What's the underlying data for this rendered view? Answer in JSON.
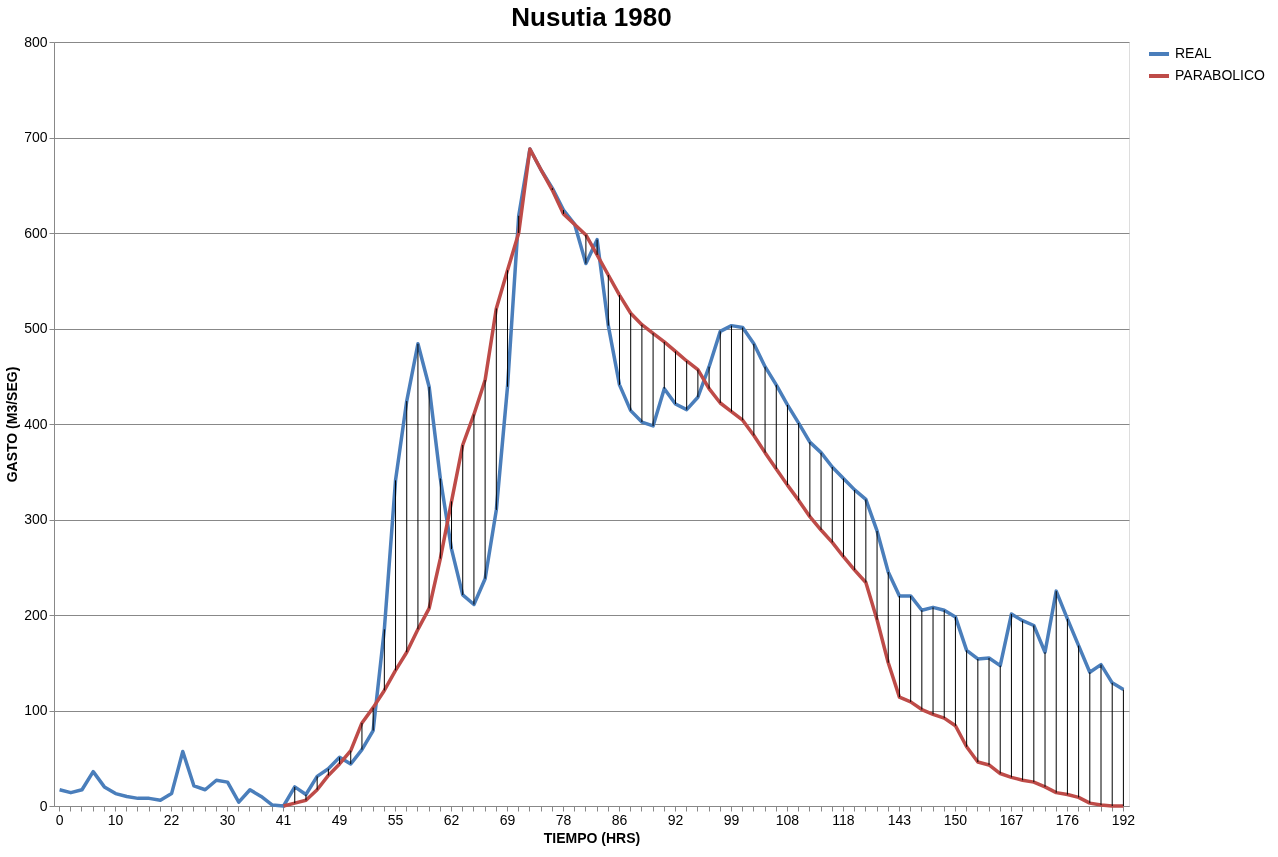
{
  "chart_data": {
    "type": "line",
    "title": "Nusutia 1980",
    "xlabel": "TIEMPO (HRS)",
    "ylabel": "GASTO (M3/SEG)",
    "categories": [
      "0",
      null,
      null,
      null,
      null,
      "10",
      null,
      null,
      null,
      null,
      "22",
      null,
      null,
      null,
      null,
      "30",
      null,
      null,
      null,
      null,
      "41",
      null,
      null,
      null,
      null,
      "49",
      null,
      null,
      null,
      null,
      "55",
      null,
      null,
      null,
      null,
      "62",
      null,
      null,
      null,
      null,
      "69",
      null,
      null,
      null,
      null,
      "78",
      null,
      null,
      null,
      null,
      "86",
      null,
      null,
      null,
      null,
      "92",
      null,
      null,
      null,
      null,
      "99",
      null,
      null,
      null,
      null,
      "108",
      null,
      null,
      null,
      null,
      "118",
      null,
      null,
      null,
      null,
      "143",
      null,
      null,
      null,
      null,
      "150",
      null,
      null,
      null,
      null,
      "167",
      null,
      null,
      null,
      null,
      "176",
      null,
      null,
      null,
      null,
      "192"
    ],
    "series": [
      {
        "name": "REAL",
        "color": "#4a7ebb",
        "values": [
          17,
          14,
          17,
          36,
          20,
          13,
          10,
          8,
          8,
          6,
          13,
          57,
          21,
          17,
          27,
          25,
          4,
          17,
          10,
          1,
          0,
          20,
          12,
          31,
          39,
          51,
          44,
          59,
          79,
          185,
          341,
          424,
          484,
          439,
          343,
          269,
          221,
          211,
          238,
          310,
          439,
          618,
          688,
          666,
          647,
          624,
          609,
          568,
          593,
          503,
          441,
          414,
          402,
          398,
          437,
          421,
          415,
          428,
          460,
          497,
          503,
          501,
          484,
          460,
          441,
          420,
          401,
          381,
          370,
          355,
          343,
          331,
          321,
          288,
          245,
          220,
          220,
          205,
          208,
          205,
          198,
          163,
          154,
          155,
          147,
          201,
          194,
          189,
          161,
          225,
          196,
          168,
          140,
          148,
          129,
          122
        ]
      },
      {
        "name": "PARABOLICO",
        "color": "#be4b48",
        "values": [
          null,
          null,
          null,
          null,
          null,
          null,
          null,
          null,
          null,
          null,
          null,
          null,
          null,
          null,
          null,
          null,
          null,
          null,
          null,
          null,
          0,
          3,
          6,
          17,
          32,
          44,
          58,
          87,
          103,
          121,
          142,
          161,
          185,
          207,
          259,
          319,
          378,
          410,
          446,
          521,
          561,
          600,
          688,
          666,
          645,
          620,
          609,
          598,
          577,
          556,
          535,
          516,
          504,
          495,
          486,
          476,
          466,
          457,
          437,
          422,
          413,
          404,
          388,
          370,
          353,
          336,
          320,
          303,
          289,
          276,
          261,
          247,
          234,
          195,
          150,
          114,
          109,
          101,
          96,
          92,
          84,
          62,
          46,
          43,
          34,
          30,
          27,
          25,
          20,
          14,
          12,
          9,
          3,
          1,
          0,
          0
        ]
      }
    ],
    "ylim": [
      0,
      800
    ],
    "yticks": [
      0,
      100,
      200,
      300,
      400,
      500,
      600,
      700,
      800
    ],
    "grid": "y",
    "legend": "right",
    "marker": "none",
    "line_style": "solid"
  }
}
